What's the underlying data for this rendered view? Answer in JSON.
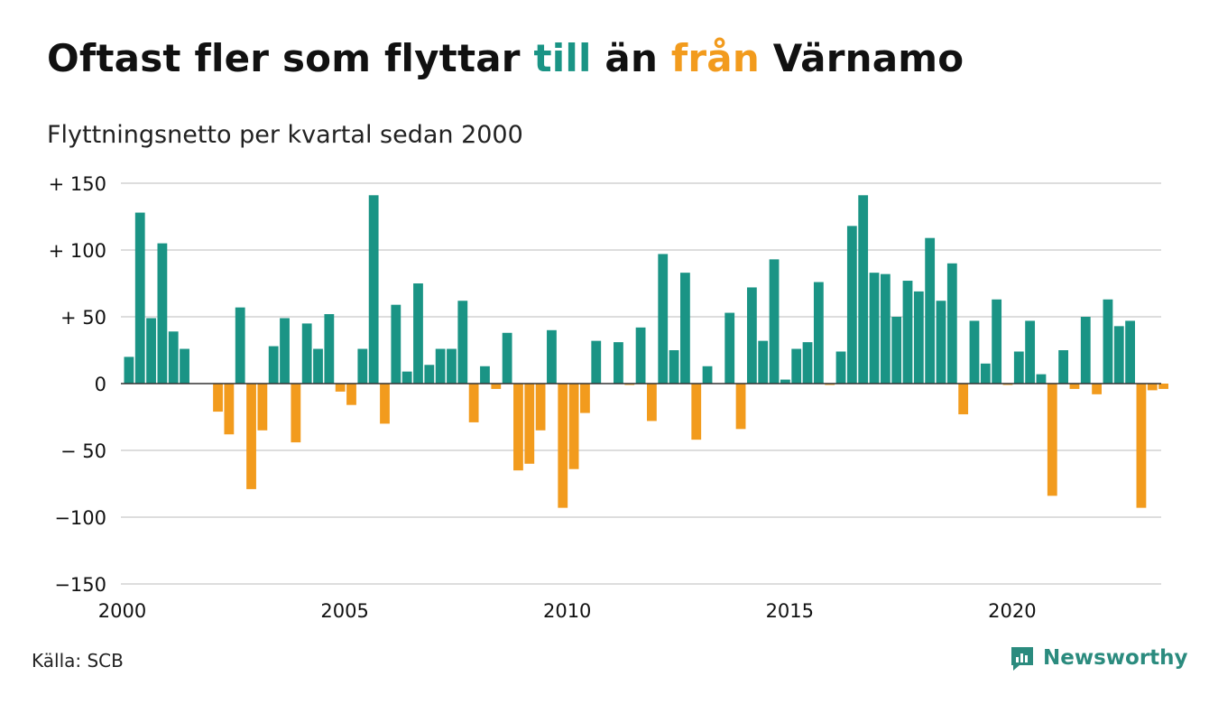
{
  "title": {
    "part1": "Oftast fler som flyttar ",
    "highlight_pos": "till",
    "part2": " än ",
    "highlight_neg": "från",
    "part3": " Värnamo"
  },
  "subtitle": "Flyttningsnetto per kvartal sedan 2000",
  "source": "Källa: SCB",
  "brand": {
    "name": "Newsworthy",
    "icon": "newsworthy-logo-icon"
  },
  "colors": {
    "positive": "#1a9485",
    "negative": "#f29b1d",
    "grid": "#dddddd",
    "text": "#111111"
  },
  "chart_data": {
    "type": "bar",
    "title": "Oftast fler som flyttar till än från Värnamo",
    "subtitle": "Flyttningsnetto per kvartal sedan 2000",
    "x_start": "2000 Q1",
    "x_ticks": [
      "2000",
      "2005",
      "2010",
      "2015",
      "2020"
    ],
    "y_ticks": [
      "+ 150",
      "+ 100",
      "+  50",
      "0",
      "− 50",
      "−100",
      "−150"
    ],
    "ylim": [
      -150,
      150
    ],
    "grid": true,
    "values": [
      20,
      128,
      49,
      105,
      39,
      26,
      0,
      0,
      -21,
      -38,
      57,
      -79,
      -35,
      28,
      49,
      -44,
      45,
      26,
      52,
      -6,
      -16,
      26,
      141,
      -30,
      59,
      9,
      75,
      14,
      26,
      26,
      62,
      -29,
      13,
      -4,
      38,
      -65,
      -60,
      -35,
      40,
      -93,
      -64,
      -22,
      32,
      0,
      31,
      -1,
      42,
      -28,
      97,
      25,
      83,
      -42,
      13,
      0,
      53,
      -34,
      72,
      32,
      93,
      3,
      26,
      31,
      76,
      -1,
      24,
      118,
      141,
      83,
      82,
      50,
      77,
      69,
      109,
      62,
      90,
      -23,
      47,
      15,
      63,
      -1,
      24,
      47,
      7,
      -84,
      25,
      -4,
      50,
      -8,
      63,
      43,
      47,
      -93,
      -5,
      -4
    ]
  }
}
